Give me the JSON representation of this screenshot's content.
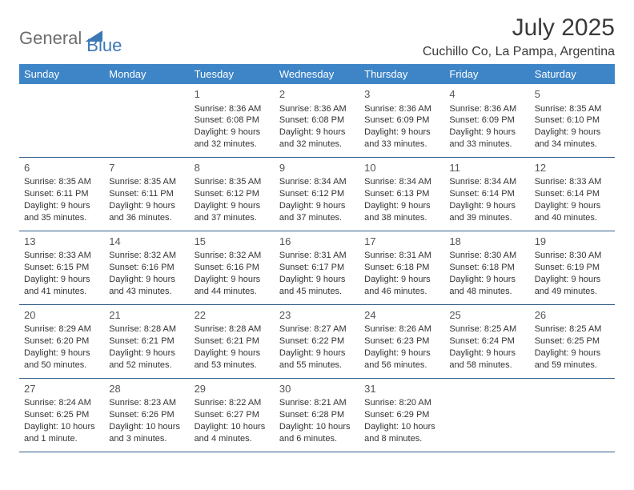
{
  "logo": {
    "part1": "General",
    "part2": "Blue"
  },
  "title": "July 2025",
  "location": "Cuchillo Co, La Pampa, Argentina",
  "colors": {
    "header_bg": "#3d85c6",
    "header_text": "#ffffff",
    "border": "#2e5d8a",
    "logo_gray": "#6d6d6d",
    "logo_blue": "#3d78b6"
  },
  "columns": [
    "Sunday",
    "Monday",
    "Tuesday",
    "Wednesday",
    "Thursday",
    "Friday",
    "Saturday"
  ],
  "weeks": [
    [
      null,
      null,
      {
        "n": "1",
        "sr": "8:36 AM",
        "ss": "6:08 PM",
        "dl": "9 hours and 32 minutes."
      },
      {
        "n": "2",
        "sr": "8:36 AM",
        "ss": "6:08 PM",
        "dl": "9 hours and 32 minutes."
      },
      {
        "n": "3",
        "sr": "8:36 AM",
        "ss": "6:09 PM",
        "dl": "9 hours and 33 minutes."
      },
      {
        "n": "4",
        "sr": "8:36 AM",
        "ss": "6:09 PM",
        "dl": "9 hours and 33 minutes."
      },
      {
        "n": "5",
        "sr": "8:35 AM",
        "ss": "6:10 PM",
        "dl": "9 hours and 34 minutes."
      }
    ],
    [
      {
        "n": "6",
        "sr": "8:35 AM",
        "ss": "6:11 PM",
        "dl": "9 hours and 35 minutes."
      },
      {
        "n": "7",
        "sr": "8:35 AM",
        "ss": "6:11 PM",
        "dl": "9 hours and 36 minutes."
      },
      {
        "n": "8",
        "sr": "8:35 AM",
        "ss": "6:12 PM",
        "dl": "9 hours and 37 minutes."
      },
      {
        "n": "9",
        "sr": "8:34 AM",
        "ss": "6:12 PM",
        "dl": "9 hours and 37 minutes."
      },
      {
        "n": "10",
        "sr": "8:34 AM",
        "ss": "6:13 PM",
        "dl": "9 hours and 38 minutes."
      },
      {
        "n": "11",
        "sr": "8:34 AM",
        "ss": "6:14 PM",
        "dl": "9 hours and 39 minutes."
      },
      {
        "n": "12",
        "sr": "8:33 AM",
        "ss": "6:14 PM",
        "dl": "9 hours and 40 minutes."
      }
    ],
    [
      {
        "n": "13",
        "sr": "8:33 AM",
        "ss": "6:15 PM",
        "dl": "9 hours and 41 minutes."
      },
      {
        "n": "14",
        "sr": "8:32 AM",
        "ss": "6:16 PM",
        "dl": "9 hours and 43 minutes."
      },
      {
        "n": "15",
        "sr": "8:32 AM",
        "ss": "6:16 PM",
        "dl": "9 hours and 44 minutes."
      },
      {
        "n": "16",
        "sr": "8:31 AM",
        "ss": "6:17 PM",
        "dl": "9 hours and 45 minutes."
      },
      {
        "n": "17",
        "sr": "8:31 AM",
        "ss": "6:18 PM",
        "dl": "9 hours and 46 minutes."
      },
      {
        "n": "18",
        "sr": "8:30 AM",
        "ss": "6:18 PM",
        "dl": "9 hours and 48 minutes."
      },
      {
        "n": "19",
        "sr": "8:30 AM",
        "ss": "6:19 PM",
        "dl": "9 hours and 49 minutes."
      }
    ],
    [
      {
        "n": "20",
        "sr": "8:29 AM",
        "ss": "6:20 PM",
        "dl": "9 hours and 50 minutes."
      },
      {
        "n": "21",
        "sr": "8:28 AM",
        "ss": "6:21 PM",
        "dl": "9 hours and 52 minutes."
      },
      {
        "n": "22",
        "sr": "8:28 AM",
        "ss": "6:21 PM",
        "dl": "9 hours and 53 minutes."
      },
      {
        "n": "23",
        "sr": "8:27 AM",
        "ss": "6:22 PM",
        "dl": "9 hours and 55 minutes."
      },
      {
        "n": "24",
        "sr": "8:26 AM",
        "ss": "6:23 PM",
        "dl": "9 hours and 56 minutes."
      },
      {
        "n": "25",
        "sr": "8:25 AM",
        "ss": "6:24 PM",
        "dl": "9 hours and 58 minutes."
      },
      {
        "n": "26",
        "sr": "8:25 AM",
        "ss": "6:25 PM",
        "dl": "9 hours and 59 minutes."
      }
    ],
    [
      {
        "n": "27",
        "sr": "8:24 AM",
        "ss": "6:25 PM",
        "dl": "10 hours and 1 minute."
      },
      {
        "n": "28",
        "sr": "8:23 AM",
        "ss": "6:26 PM",
        "dl": "10 hours and 3 minutes."
      },
      {
        "n": "29",
        "sr": "8:22 AM",
        "ss": "6:27 PM",
        "dl": "10 hours and 4 minutes."
      },
      {
        "n": "30",
        "sr": "8:21 AM",
        "ss": "6:28 PM",
        "dl": "10 hours and 6 minutes."
      },
      {
        "n": "31",
        "sr": "8:20 AM",
        "ss": "6:29 PM",
        "dl": "10 hours and 8 minutes."
      },
      null,
      null
    ]
  ],
  "labels": {
    "sunrise": "Sunrise:",
    "sunset": "Sunset:",
    "daylight": "Daylight:"
  }
}
